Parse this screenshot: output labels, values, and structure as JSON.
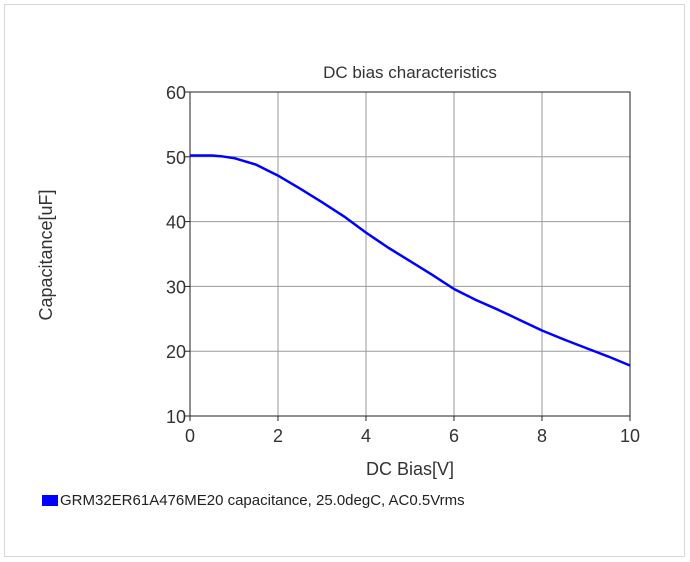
{
  "chart_data": {
    "type": "line",
    "title": "DC bias characteristics",
    "xlabel": "DC Bias[V]",
    "ylabel": "Capacitance[uF]",
    "xlim": [
      0,
      10
    ],
    "ylim": [
      10,
      60
    ],
    "xticks": [
      0,
      2,
      4,
      6,
      8,
      10
    ],
    "yticks": [
      10,
      20,
      30,
      40,
      50,
      60
    ],
    "grid": true,
    "legend_position": "bottom-left",
    "series": [
      {
        "name": "GRM32ER61A476ME20 capacitance, 25.0degC, AC0.5Vrms",
        "color": "#0000ff",
        "x": [
          0,
          0.25,
          0.5,
          0.7,
          1.0,
          1.5,
          2.0,
          2.5,
          3.0,
          3.5,
          4.0,
          4.5,
          5.0,
          5.5,
          6.0,
          6.5,
          7.0,
          7.5,
          8.0,
          8.5,
          9.0,
          9.5,
          10.0
        ],
        "y": [
          50.2,
          50.2,
          50.2,
          50.1,
          49.8,
          48.8,
          47.1,
          45.1,
          43.0,
          40.8,
          38.3,
          36.0,
          33.9,
          31.8,
          29.6,
          27.9,
          26.4,
          24.8,
          23.2,
          21.8,
          20.5,
          19.2,
          17.8
        ]
      }
    ]
  }
}
